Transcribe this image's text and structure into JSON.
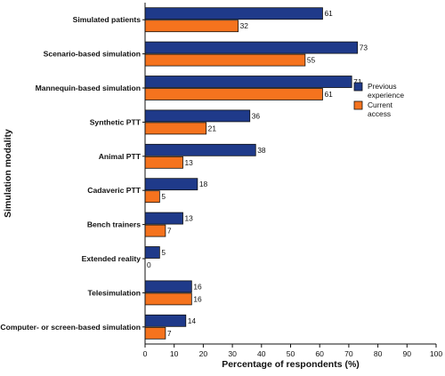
{
  "chart_data": {
    "type": "bar",
    "orientation": "horizontal",
    "xlabel": "Percentage of respondents (%)",
    "ylabel": "Simulation modality",
    "xlim": [
      0,
      100
    ],
    "xticks": [
      "0",
      "10",
      "20",
      "30",
      "40",
      "50",
      "60",
      "70",
      "80",
      "90",
      "100"
    ],
    "categories": [
      "Simulated patients",
      "Scenario-based simulation",
      "Mannequin-based simulation",
      "Synthetic PTT",
      "Animal PTT",
      "Cadaveric PTT",
      "Bench trainers",
      "Extended reality",
      "Telesimulation",
      "Computer- or screen-based simulation"
    ],
    "series": [
      {
        "name": "Previous experience",
        "color": "#1f3a8a",
        "values": [
          61,
          73,
          71,
          36,
          38,
          18,
          13,
          5,
          16,
          14
        ]
      },
      {
        "name": "Current access",
        "color": "#f5731e",
        "values": [
          32,
          55,
          61,
          21,
          13,
          5,
          7,
          0,
          16,
          7
        ]
      }
    ],
    "legend": {
      "placement": "right",
      "items": [
        {
          "line1": "Previous",
          "line2": "experience"
        },
        {
          "line1": "Current",
          "line2": "access"
        }
      ]
    },
    "grid": false
  }
}
